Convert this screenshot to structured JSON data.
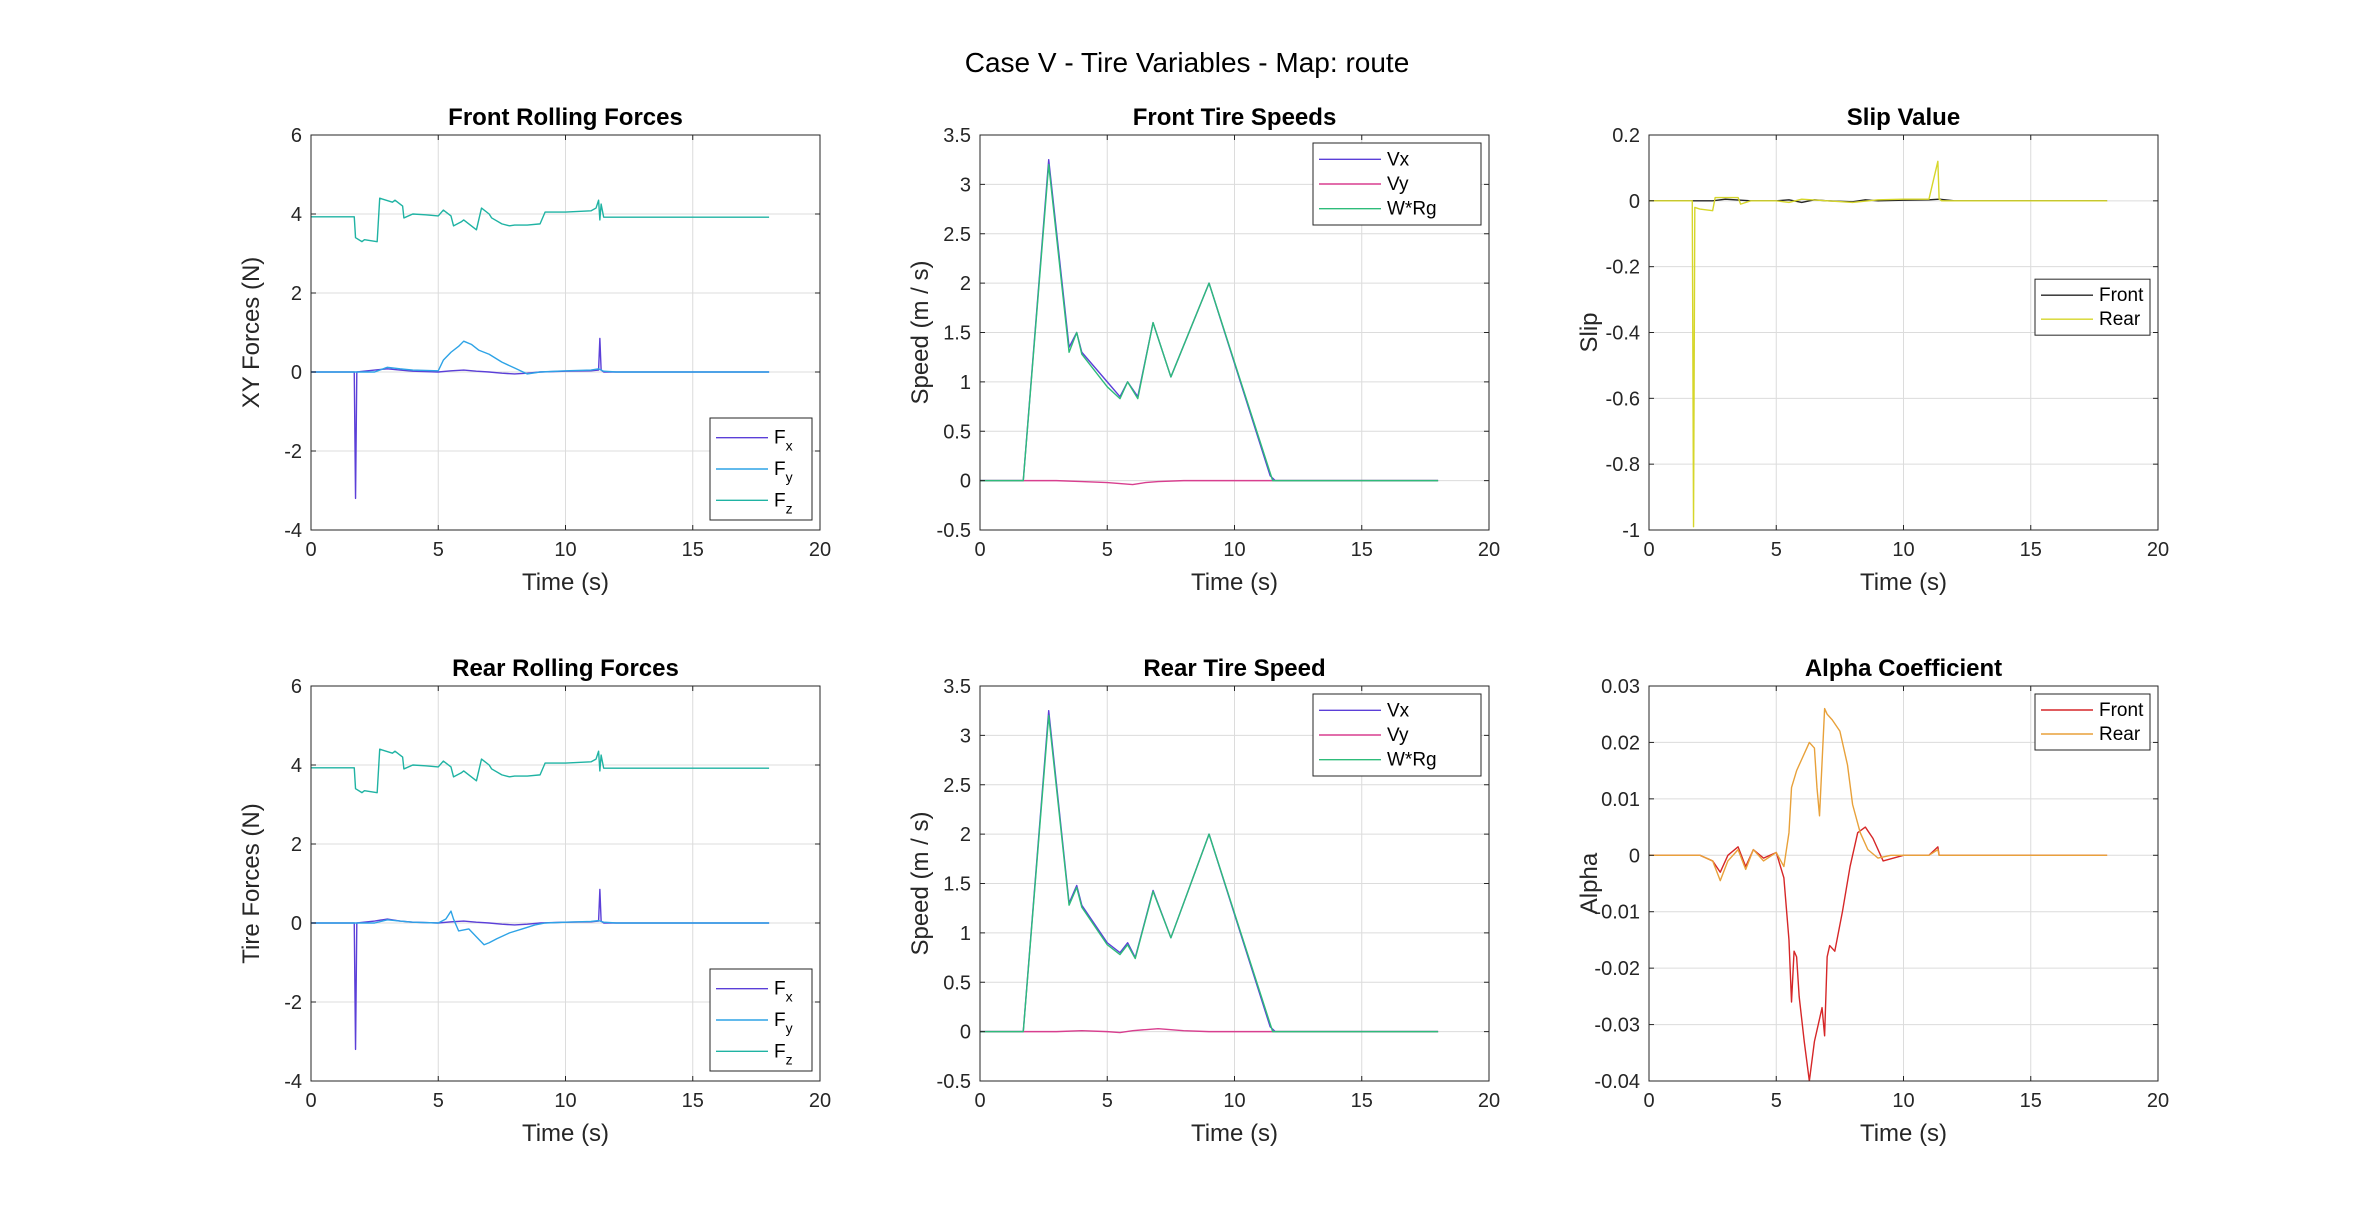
{
  "figure": {
    "title": "Case V - Tire Variables - Map: route"
  },
  "chart_data": [
    {
      "type": "line",
      "title": "Front Rolling Forces",
      "xlabel": "Time (s)",
      "ylabel": "XY Forces (N)",
      "xlim": [
        0,
        20
      ],
      "ylim": [
        -4,
        6
      ],
      "xticks": [
        0,
        5,
        10,
        15,
        20
      ],
      "yticks": [
        -4,
        -2,
        0,
        2,
        4,
        6
      ],
      "grid": true,
      "legend_position": "bottom-right",
      "series": [
        {
          "name": "F",
          "sub": "x",
          "color": "#5b3fd8",
          "x": [
            0,
            1.7,
            1.75,
            1.8,
            2.5,
            3,
            3.5,
            4,
            5,
            5.5,
            6,
            6.5,
            7,
            7.5,
            8,
            8.5,
            9,
            10,
            11,
            11.3,
            11.35,
            11.4,
            11.5,
            12,
            18
          ],
          "y": [
            0,
            0,
            -3.2,
            0,
            0.05,
            0.08,
            0.05,
            0.02,
            0,
            0.03,
            0.05,
            0.02,
            0,
            -0.03,
            -0.05,
            -0.03,
            0,
            0.02,
            0.03,
            0.05,
            0.85,
            0.05,
            0,
            0,
            0
          ]
        },
        {
          "name": "F",
          "sub": "y",
          "color": "#2ea3e6",
          "x": [
            0,
            1.7,
            2.5,
            3,
            3.5,
            4,
            5,
            5.2,
            5.5,
            5.8,
            6,
            6.3,
            6.6,
            7,
            7.5,
            8,
            8.5,
            9,
            10,
            11,
            11.3,
            11.5,
            12,
            18
          ],
          "y": [
            0,
            0,
            0,
            0.12,
            0.08,
            0.05,
            0.03,
            0.3,
            0.5,
            0.65,
            0.78,
            0.7,
            0.55,
            0.45,
            0.25,
            0.1,
            -0.05,
            0,
            0.03,
            0.05,
            0.08,
            0.02,
            0,
            0
          ]
        },
        {
          "name": "F",
          "sub": "z",
          "color": "#1fb3a3",
          "x": [
            0,
            1.7,
            1.75,
            2.0,
            2.1,
            2.6,
            2.7,
            3.2,
            3.3,
            3.6,
            3.65,
            4.0,
            4.5,
            5.0,
            5.2,
            5.5,
            5.6,
            5.9,
            6.0,
            6.5,
            6.7,
            7.0,
            7.1,
            7.5,
            7.8,
            8.0,
            8.5,
            9.0,
            9.2,
            9.5,
            10,
            11,
            11.2,
            11.3,
            11.35,
            11.4,
            11.5,
            12,
            18
          ],
          "y": [
            3.93,
            3.93,
            3.4,
            3.3,
            3.35,
            3.3,
            4.4,
            4.3,
            4.35,
            4.2,
            3.9,
            4.0,
            3.98,
            3.95,
            4.1,
            3.95,
            3.7,
            3.8,
            3.85,
            3.6,
            4.15,
            4.0,
            3.9,
            3.75,
            3.7,
            3.72,
            3.72,
            3.75,
            4.05,
            4.05,
            4.05,
            4.08,
            4.15,
            4.35,
            3.85,
            4.25,
            3.92,
            3.92,
            3.92
          ]
        }
      ]
    },
    {
      "type": "line",
      "title": "Front Tire Speeds",
      "xlabel": "Time (s)",
      "ylabel": "Speed (m / s)",
      "xlim": [
        0,
        20
      ],
      "ylim": [
        -0.5,
        3.5
      ],
      "xticks": [
        0,
        5,
        10,
        15,
        20
      ],
      "yticks": [
        -0.5,
        0,
        0.5,
        1,
        1.5,
        2,
        2.5,
        3,
        3.5
      ],
      "grid": true,
      "legend_position": "top-right",
      "series": [
        {
          "name": "Vx",
          "sub": "",
          "color": "#5b3fd8",
          "x": [
            0,
            1.7,
            2.7,
            3.5,
            3.8,
            4.0,
            5.0,
            5.5,
            5.8,
            6.2,
            6.8,
            7.5,
            9.0,
            11.4,
            11.6,
            18
          ],
          "y": [
            0,
            0,
            3.25,
            1.35,
            1.5,
            1.3,
            1.0,
            0.85,
            1.0,
            0.85,
            1.6,
            1.05,
            2.0,
            0.05,
            0,
            0
          ]
        },
        {
          "name": "Vy",
          "sub": "",
          "color": "#d83f8f",
          "x": [
            0,
            2,
            3,
            4,
            5,
            5.5,
            6,
            6.5,
            7,
            8,
            9,
            10,
            11,
            11.5,
            18
          ],
          "y": [
            0,
            0,
            0,
            -0.01,
            -0.02,
            -0.03,
            -0.04,
            -0.02,
            -0.01,
            0,
            0,
            0,
            0,
            0,
            0
          ]
        },
        {
          "name": "W*Rg",
          "sub": "",
          "color": "#2ebc7a",
          "x": [
            0,
            1.7,
            2.7,
            3.5,
            3.8,
            4.0,
            5.0,
            5.5,
            5.8,
            6.2,
            6.8,
            7.5,
            9.0,
            11.5,
            18
          ],
          "y": [
            0,
            0,
            3.2,
            1.3,
            1.5,
            1.28,
            0.95,
            0.83,
            1.0,
            0.83,
            1.6,
            1.05,
            2.0,
            0,
            0
          ]
        }
      ]
    },
    {
      "type": "line",
      "title": "Slip Value",
      "xlabel": "Time (s)",
      "ylabel": "Slip",
      "xlim": [
        0,
        20
      ],
      "ylim": [
        -1,
        0.2
      ],
      "xticks": [
        0,
        5,
        10,
        15,
        20
      ],
      "yticks": [
        -1,
        -0.8,
        -0.6,
        -0.4,
        -0.2,
        0,
        0.2
      ],
      "grid": true,
      "legend_position": "right",
      "series": [
        {
          "name": "Front",
          "sub": "",
          "color": "#262626",
          "x": [
            0,
            2,
            2.5,
            3,
            4,
            5,
            5.5,
            6,
            6.5,
            7,
            8,
            8.5,
            9,
            10,
            11,
            11.4,
            12,
            18
          ],
          "y": [
            0,
            0,
            0,
            0.005,
            0,
            0,
            0.003,
            -0.005,
            0.003,
            0,
            -0.003,
            0.003,
            0,
            0.002,
            0.003,
            0.005,
            0,
            0
          ]
        },
        {
          "name": "Rear",
          "sub": "",
          "color": "#d6d62a",
          "x": [
            0,
            1.7,
            1.75,
            1.8,
            2.0,
            2.5,
            2.6,
            3.5,
            3.6,
            4.0,
            5.0,
            5.5,
            6.0,
            7.0,
            8.0,
            9.0,
            10,
            11,
            11.35,
            11.4,
            11.45,
            11.5,
            12,
            18
          ],
          "y": [
            0,
            0,
            -0.99,
            -0.02,
            -0.025,
            -0.03,
            0.01,
            0.01,
            -0.01,
            0,
            0,
            -0.005,
            0.005,
            0,
            -0.005,
            0.003,
            0.005,
            0.005,
            0.12,
            0.005,
            0.003,
            0,
            0,
            0
          ]
        }
      ]
    },
    {
      "type": "line",
      "title": "Rear Rolling Forces",
      "xlabel": "Time (s)",
      "ylabel": "Tire Forces (N)",
      "xlim": [
        0,
        20
      ],
      "ylim": [
        -4,
        6
      ],
      "xticks": [
        0,
        5,
        10,
        15,
        20
      ],
      "yticks": [
        -4,
        -2,
        0,
        2,
        4,
        6
      ],
      "grid": true,
      "legend_position": "bottom-right",
      "series": [
        {
          "name": "F",
          "sub": "x",
          "color": "#5b3fd8",
          "x": [
            0,
            1.7,
            1.75,
            1.8,
            2.5,
            3,
            3.5,
            4,
            5,
            5.5,
            6,
            6.5,
            7,
            7.5,
            8,
            8.5,
            9,
            10,
            11,
            11.3,
            11.35,
            11.4,
            11.5,
            12,
            18
          ],
          "y": [
            0,
            0,
            -3.2,
            0,
            0.05,
            0.1,
            0.05,
            0.02,
            0,
            0.03,
            0.05,
            0.02,
            0,
            -0.03,
            -0.05,
            -0.03,
            0,
            0.02,
            0.03,
            0.05,
            0.85,
            0.05,
            0,
            0,
            0
          ]
        },
        {
          "name": "F",
          "sub": "y",
          "color": "#2ea3e6",
          "x": [
            0,
            1.7,
            2.5,
            3,
            3.5,
            4,
            5,
            5.3,
            5.5,
            5.6,
            5.8,
            6.2,
            6.5,
            6.8,
            7.0,
            7.3,
            7.8,
            8.3,
            8.8,
            9.2,
            10,
            11,
            11.3,
            11.5,
            12,
            18
          ],
          "y": [
            0,
            0,
            0,
            0.08,
            0.05,
            0.02,
            0,
            0.1,
            0.3,
            0.1,
            -0.2,
            -0.15,
            -0.35,
            -0.55,
            -0.5,
            -0.4,
            -0.25,
            -0.15,
            -0.05,
            0,
            0.02,
            0.04,
            0.06,
            0.02,
            0,
            0
          ]
        },
        {
          "name": "F",
          "sub": "z",
          "color": "#1fb3a3",
          "x": [
            0,
            1.7,
            1.75,
            2.0,
            2.1,
            2.6,
            2.7,
            3.2,
            3.3,
            3.6,
            3.65,
            4.0,
            4.5,
            5.0,
            5.2,
            5.5,
            5.6,
            5.9,
            6.0,
            6.5,
            6.7,
            7.0,
            7.1,
            7.5,
            7.8,
            8.0,
            8.5,
            9.0,
            9.2,
            9.5,
            10,
            11,
            11.2,
            11.3,
            11.35,
            11.4,
            11.5,
            12,
            18
          ],
          "y": [
            3.93,
            3.93,
            3.4,
            3.3,
            3.35,
            3.3,
            4.4,
            4.3,
            4.35,
            4.2,
            3.9,
            4.0,
            3.98,
            3.95,
            4.1,
            3.95,
            3.7,
            3.8,
            3.85,
            3.6,
            4.15,
            4.0,
            3.9,
            3.75,
            3.7,
            3.72,
            3.72,
            3.75,
            4.05,
            4.05,
            4.05,
            4.08,
            4.15,
            4.35,
            3.85,
            4.25,
            3.92,
            3.92,
            3.92
          ]
        }
      ]
    },
    {
      "type": "line",
      "title": "Rear Tire Speed",
      "xlabel": "Time (s)",
      "ylabel": "Speed (m / s)",
      "xlim": [
        0,
        20
      ],
      "ylim": [
        -0.5,
        3.5
      ],
      "xticks": [
        0,
        5,
        10,
        15,
        20
      ],
      "yticks": [
        -0.5,
        0,
        0.5,
        1,
        1.5,
        2,
        2.5,
        3,
        3.5
      ],
      "grid": true,
      "legend_position": "top-right",
      "series": [
        {
          "name": "Vx",
          "sub": "",
          "color": "#5b3fd8",
          "x": [
            0,
            1.7,
            2.7,
            3.5,
            3.8,
            4.0,
            5.0,
            5.5,
            5.8,
            6.1,
            6.8,
            7.5,
            9.0,
            11.4,
            11.6,
            18
          ],
          "y": [
            0,
            0,
            3.25,
            1.3,
            1.48,
            1.28,
            0.9,
            0.8,
            0.9,
            0.75,
            1.43,
            0.95,
            2.0,
            0.05,
            0,
            0
          ]
        },
        {
          "name": "Vy",
          "sub": "",
          "color": "#d83f8f",
          "x": [
            0,
            2,
            3,
            4,
            5,
            5.5,
            6,
            6.5,
            7,
            8,
            9,
            10,
            11,
            11.5,
            18
          ],
          "y": [
            0,
            0,
            0,
            0.01,
            0,
            -0.01,
            0.01,
            0.02,
            0.03,
            0.01,
            0,
            0,
            0,
            0,
            0
          ]
        },
        {
          "name": "W*Rg",
          "sub": "",
          "color": "#2ebc7a",
          "x": [
            0,
            1.7,
            2.7,
            3.5,
            3.8,
            4.0,
            5.0,
            5.5,
            5.8,
            6.1,
            6.8,
            7.5,
            9.0,
            11.5,
            18
          ],
          "y": [
            0,
            0,
            3.2,
            1.28,
            1.46,
            1.26,
            0.88,
            0.78,
            0.88,
            0.74,
            1.42,
            0.95,
            2.0,
            0,
            0
          ]
        }
      ]
    },
    {
      "type": "line",
      "title": "Alpha Coefficient",
      "xlabel": "Time (s)",
      "ylabel": "Alpha",
      "xlim": [
        0,
        20
      ],
      "ylim": [
        -0.04,
        0.03
      ],
      "xticks": [
        0,
        5,
        10,
        15,
        20
      ],
      "yticks": [
        -0.04,
        -0.03,
        -0.02,
        -0.01,
        0,
        0.01,
        0.02,
        0.03
      ],
      "grid": true,
      "legend_position": "top-right",
      "series": [
        {
          "name": "Front",
          "sub": "",
          "color": "#d62728",
          "x": [
            0,
            2.0,
            2.5,
            2.8,
            3.1,
            3.5,
            3.8,
            4.1,
            4.5,
            5.0,
            5.3,
            5.5,
            5.6,
            5.7,
            5.8,
            5.9,
            6.1,
            6.3,
            6.5,
            6.7,
            6.8,
            6.9,
            7.0,
            7.1,
            7.3,
            7.6,
            7.9,
            8.2,
            8.5,
            8.8,
            9.2,
            10,
            11,
            11.35,
            11.4,
            11.5,
            12,
            18
          ],
          "y": [
            0,
            0,
            -0.001,
            -0.003,
            0,
            0.0015,
            -0.002,
            0.001,
            -0.0005,
            0.0005,
            -0.004,
            -0.015,
            -0.026,
            -0.017,
            -0.018,
            -0.025,
            -0.033,
            -0.04,
            -0.033,
            -0.029,
            -0.027,
            -0.032,
            -0.018,
            -0.016,
            -0.017,
            -0.01,
            -0.002,
            0.004,
            0.005,
            0.003,
            -0.001,
            0,
            0,
            0.0015,
            0,
            0,
            0,
            0
          ]
        },
        {
          "name": "Rear",
          "sub": "",
          "color": "#e8a13a",
          "x": [
            0,
            2.0,
            2.5,
            2.8,
            3.1,
            3.5,
            3.8,
            4.1,
            4.5,
            5.0,
            5.3,
            5.5,
            5.6,
            5.8,
            6.0,
            6.3,
            6.5,
            6.6,
            6.7,
            6.9,
            7.0,
            7.2,
            7.5,
            7.8,
            8.0,
            8.3,
            8.6,
            9.0,
            9.5,
            10,
            11,
            11.35,
            11.4,
            11.5,
            12,
            18
          ],
          "y": [
            0,
            0,
            -0.001,
            -0.0045,
            -0.001,
            0.001,
            -0.0025,
            0.001,
            -0.001,
            0.0005,
            -0.002,
            0.004,
            0.012,
            0.015,
            0.017,
            0.02,
            0.019,
            0.012,
            0.007,
            0.026,
            0.025,
            0.024,
            0.022,
            0.016,
            0.009,
            0.004,
            0.001,
            -0.0005,
            0,
            0,
            0,
            0.001,
            0,
            0,
            0,
            0
          ]
        }
      ]
    }
  ]
}
